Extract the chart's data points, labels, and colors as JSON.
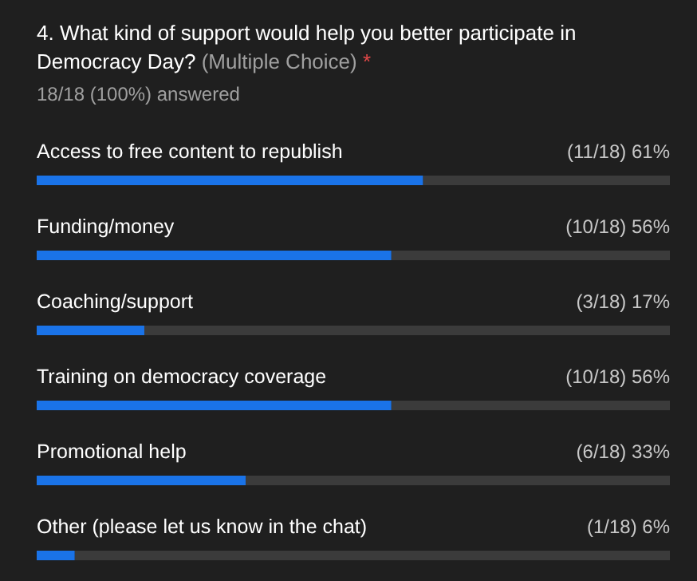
{
  "chart_data": {
    "type": "bar",
    "orientation": "horizontal",
    "title": "4. What kind of support would help you better participate in Democracy Day?",
    "subtitle": "18/18 (100%) answered",
    "annotations": [
      "(Multiple Choice)",
      "*"
    ],
    "categories": [
      "Access to free content to republish",
      "Funding/money",
      "Coaching/support",
      "Training on democracy coverage",
      "Promotional help",
      "Other (please let us know in the chat)"
    ],
    "values": [
      61,
      56,
      17,
      56,
      33,
      6
    ],
    "value_labels": [
      "(11/18) 61%",
      "(10/18) 56%",
      "(3/18) 17%",
      "(10/18) 56%",
      "(6/18) 33%",
      "(1/18) 6%"
    ],
    "color": "#1a73e8",
    "xlim": [
      0,
      100
    ],
    "tick_labels": false
  }
}
